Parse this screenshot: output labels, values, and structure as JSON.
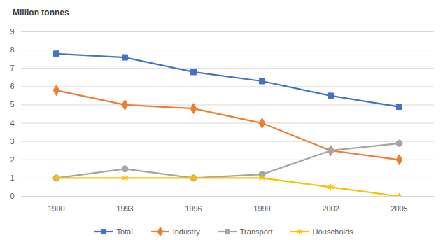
{
  "chart_data": {
    "type": "line",
    "ylabel": "Million tonnes",
    "categories": [
      "1900",
      "1993",
      "1996",
      "1999",
      "2002",
      "2005"
    ],
    "series": [
      {
        "name": "Total",
        "color": "#4472c4",
        "marker": "square",
        "values": [
          7.8,
          7.6,
          6.8,
          6.3,
          5.5,
          4.9
        ]
      },
      {
        "name": "Industry",
        "color": "#ed7d31",
        "marker": "diamond",
        "values": [
          5.8,
          5.0,
          4.8,
          4.0,
          2.5,
          2.0
        ]
      },
      {
        "name": "Transport",
        "color": "#a5a5a5",
        "marker": "circle",
        "values": [
          1.0,
          1.5,
          1.0,
          1.2,
          2.5,
          2.9
        ]
      },
      {
        "name": "Households",
        "color": "#ffc000",
        "marker": "asterisk",
        "values": [
          1.0,
          1.0,
          1.0,
          1.0,
          0.5,
          0.0
        ]
      }
    ],
    "ylim": [
      0,
      9
    ],
    "yticks": [
      0,
      1,
      2,
      3,
      4,
      5,
      6,
      7,
      8,
      9
    ],
    "grid": true,
    "legend": "bottom"
  }
}
